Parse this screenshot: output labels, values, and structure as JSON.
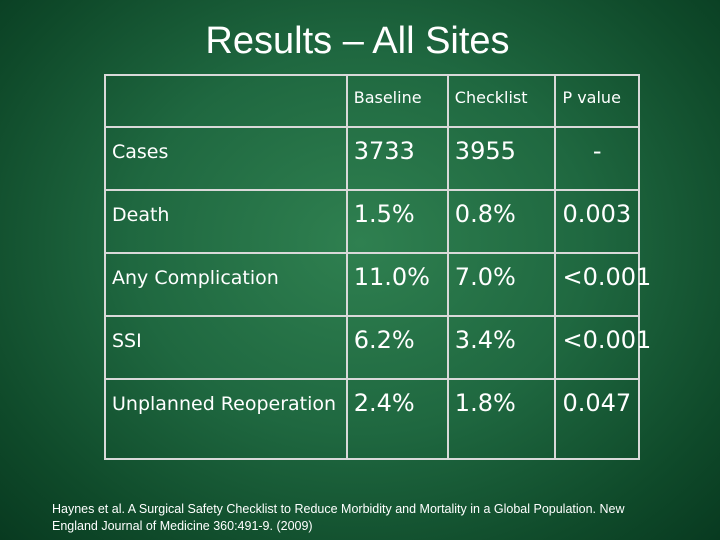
{
  "slide": {
    "title": "Results – All Sites",
    "citation": "Haynes et al. A Surgical Safety Checklist to Reduce Morbidity and Mortality in a Global Population. New England Journal of Medicine 360:491-9. (2009)"
  },
  "table": {
    "headers": [
      "",
      "Baseline",
      "Checklist",
      "P value"
    ],
    "rows": [
      {
        "label": "Cases",
        "baseline": "3733",
        "checklist": "3955",
        "p": "-"
      },
      {
        "label": "Death",
        "baseline": "1.5%",
        "checklist": "0.8%",
        "p": "0.003"
      },
      {
        "label": "Any Complication",
        "baseline": "11.0%",
        "checklist": "7.0%",
        "p": "<0.001"
      },
      {
        "label": "SSI",
        "baseline": "6.2%",
        "checklist": "3.4%",
        "p": "<0.001"
      },
      {
        "label": "Unplanned Reoperation",
        "baseline": "2.4%",
        "checklist": "1.8%",
        "p": "0.047"
      }
    ]
  }
}
